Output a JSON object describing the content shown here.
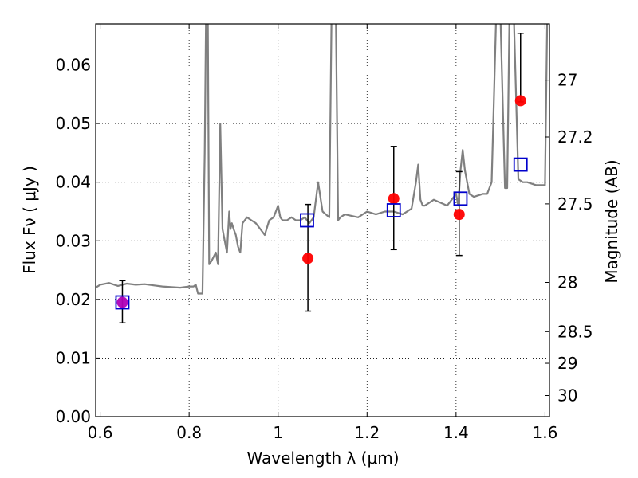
{
  "chart_data": {
    "type": "scatter",
    "xlabel": "Wavelength  λ (μm)",
    "ylabel": "Flux  Fν  ( μJy )",
    "ylabel_right": "Magnitude (AB)",
    "xlim": [
      0.59,
      1.61
    ],
    "ylim": [
      0.0,
      0.067
    ],
    "grid": true,
    "x_ticks": [
      {
        "v": 0.6,
        "label": "0.6"
      },
      {
        "v": 0.8,
        "label": "0.8"
      },
      {
        "v": 1.0,
        "label": "1"
      },
      {
        "v": 1.2,
        "label": "1.2"
      },
      {
        "v": 1.4,
        "label": "1.4"
      },
      {
        "v": 1.6,
        "label": "1.6"
      }
    ],
    "y_ticks": [
      {
        "v": 0.0,
        "label": "0.00"
      },
      {
        "v": 0.01,
        "label": "0.01"
      },
      {
        "v": 0.02,
        "label": "0.02"
      },
      {
        "v": 0.03,
        "label": "0.03"
      },
      {
        "v": 0.04,
        "label": "0.04"
      },
      {
        "v": 0.05,
        "label": "0.05"
      },
      {
        "v": 0.06,
        "label": "0.06"
      }
    ],
    "mag_ticks": [
      {
        "v": 0.0574,
        "label": "27"
      },
      {
        "v": 0.0477,
        "label": "27.2"
      },
      {
        "v": 0.0363,
        "label": "27.5"
      },
      {
        "v": 0.0229,
        "label": "28"
      },
      {
        "v": 0.0145,
        "label": "28.5"
      },
      {
        "v": 0.0091,
        "label": "29"
      },
      {
        "v": 0.0036,
        "label": "30"
      }
    ],
    "series": [
      {
        "kind": "line",
        "color": "#808080",
        "x": [
          0.59,
          0.6,
          0.62,
          0.64,
          0.66,
          0.68,
          0.7,
          0.72,
          0.74,
          0.76,
          0.78,
          0.8,
          0.81,
          0.815,
          0.82,
          0.825,
          0.83,
          0.835,
          0.838,
          0.84,
          0.842,
          0.845,
          0.85,
          0.86,
          0.865,
          0.87,
          0.875,
          0.88,
          0.885,
          0.89,
          0.893,
          0.896,
          0.9,
          0.905,
          0.91,
          0.915,
          0.92,
          0.93,
          0.94,
          0.95,
          0.96,
          0.97,
          0.98,
          0.99,
          1.0,
          1.005,
          1.01,
          1.02,
          1.03,
          1.04,
          1.05,
          1.06,
          1.07,
          1.08,
          1.09,
          1.1,
          1.115,
          1.12,
          1.125,
          1.13,
          1.135,
          1.14,
          1.15,
          1.18,
          1.2,
          1.22,
          1.24,
          1.26,
          1.28,
          1.3,
          1.31,
          1.315,
          1.32,
          1.325,
          1.33,
          1.35,
          1.38,
          1.4,
          1.405,
          1.41,
          1.415,
          1.42,
          1.43,
          1.44,
          1.46,
          1.47,
          1.48,
          1.49,
          1.5,
          1.51,
          1.515,
          1.52,
          1.525,
          1.53,
          1.54,
          1.55,
          1.56,
          1.58,
          1.6,
          1.605,
          1.61
        ],
        "values": [
          0.022,
          0.0225,
          0.0228,
          0.0223,
          0.0227,
          0.0225,
          0.0226,
          0.0224,
          0.0222,
          0.0221,
          0.022,
          0.0222,
          0.0222,
          0.0225,
          0.021,
          0.021,
          0.021,
          0.045,
          0.068,
          0.068,
          0.068,
          0.026,
          0.0265,
          0.028,
          0.026,
          0.05,
          0.032,
          0.03,
          0.028,
          0.035,
          0.032,
          0.033,
          0.032,
          0.031,
          0.029,
          0.028,
          0.033,
          0.034,
          0.0335,
          0.033,
          0.032,
          0.031,
          0.0335,
          0.034,
          0.036,
          0.034,
          0.0335,
          0.0335,
          0.034,
          0.0335,
          0.0335,
          0.034,
          0.033,
          0.034,
          0.04,
          0.035,
          0.034,
          0.068,
          0.068,
          0.068,
          0.0335,
          0.034,
          0.0345,
          0.034,
          0.035,
          0.0345,
          0.035,
          0.035,
          0.0345,
          0.0355,
          0.04,
          0.043,
          0.037,
          0.036,
          0.036,
          0.037,
          0.036,
          0.038,
          0.036,
          0.042,
          0.0455,
          0.042,
          0.038,
          0.0375,
          0.038,
          0.038,
          0.04,
          0.068,
          0.068,
          0.039,
          0.039,
          0.068,
          0.068,
          0.068,
          0.0405,
          0.04,
          0.04,
          0.0395,
          0.0395,
          0.068,
          0.068
        ]
      },
      {
        "kind": "points",
        "color": "#ff0000",
        "x": [
          0.65,
          1.067,
          1.26,
          1.407,
          1.545
        ],
        "values": [
          0.0195,
          0.027,
          0.0372,
          0.0345,
          0.0539
        ],
        "err_low": [
          0.016,
          0.018,
          0.0285,
          0.0275,
          0.0537
        ],
        "err_high": [
          0.0232,
          0.0362,
          0.0461,
          0.0418,
          0.0654
        ]
      },
      {
        "kind": "squares",
        "color": "#0000cc",
        "x": [
          0.65,
          1.065,
          1.26,
          1.41,
          1.545
        ],
        "values": [
          0.0195,
          0.0335,
          0.0352,
          0.0372,
          0.043
        ]
      }
    ]
  }
}
